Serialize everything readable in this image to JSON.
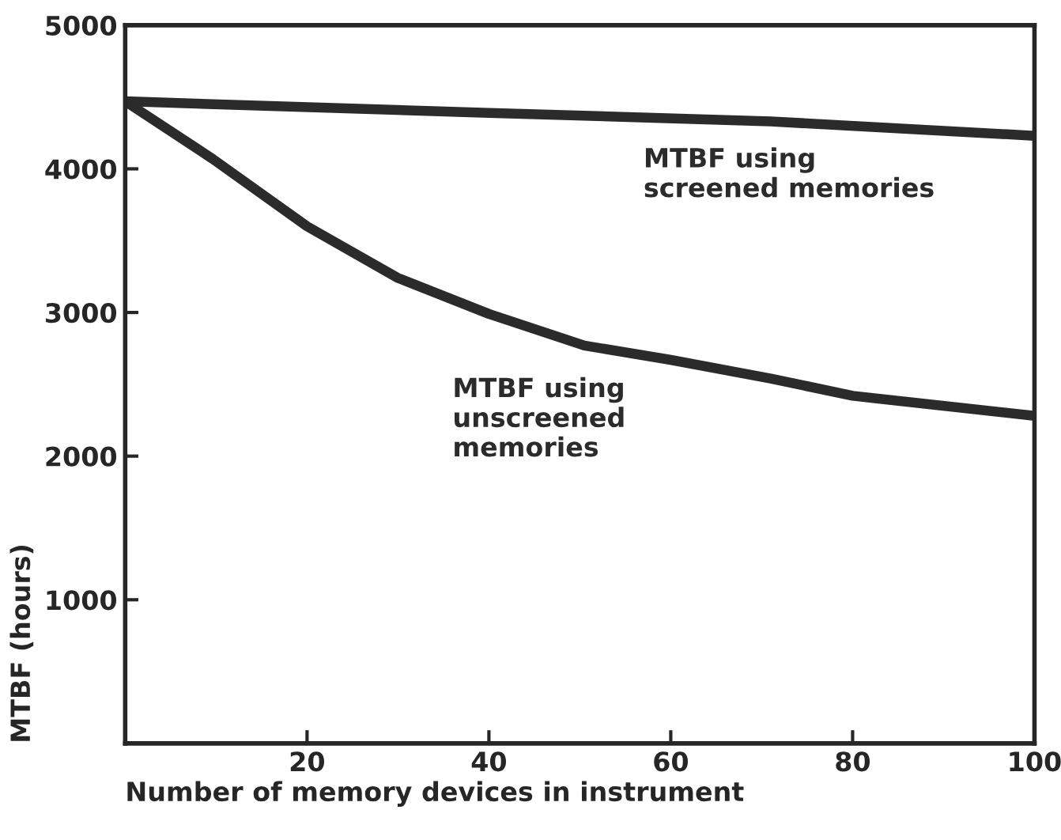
{
  "chart_data": {
    "type": "line",
    "xlabel": "Number of memory devices in instrument",
    "ylabel": "MTBF (hours)",
    "xlim": [
      0,
      100
    ],
    "ylim": [
      0,
      5000
    ],
    "xticks": [
      20,
      40,
      60,
      80,
      100
    ],
    "yticks": [
      1000,
      2000,
      3000,
      4000,
      5000
    ],
    "grid": false,
    "marker": "none",
    "line_style": "solid",
    "series": [
      {
        "color": "#2b2b2b",
        "x": [
          0,
          40,
          71,
          100
        ],
        "values": [
          4470,
          4390,
          4330,
          4230
        ]
      },
      {
        "color": "#2b2b2b",
        "x": [
          0,
          9.6,
          20,
          30,
          40,
          50.5,
          60,
          71,
          80,
          100
        ],
        "values": [
          4470,
          4070,
          3600,
          3240,
          2990,
          2770,
          2670,
          2540,
          2420,
          2280
        ]
      }
    ],
    "annotations": [
      "MTBF using\nscreened memories",
      "MTBF using\nunscreened\nmemories"
    ]
  }
}
